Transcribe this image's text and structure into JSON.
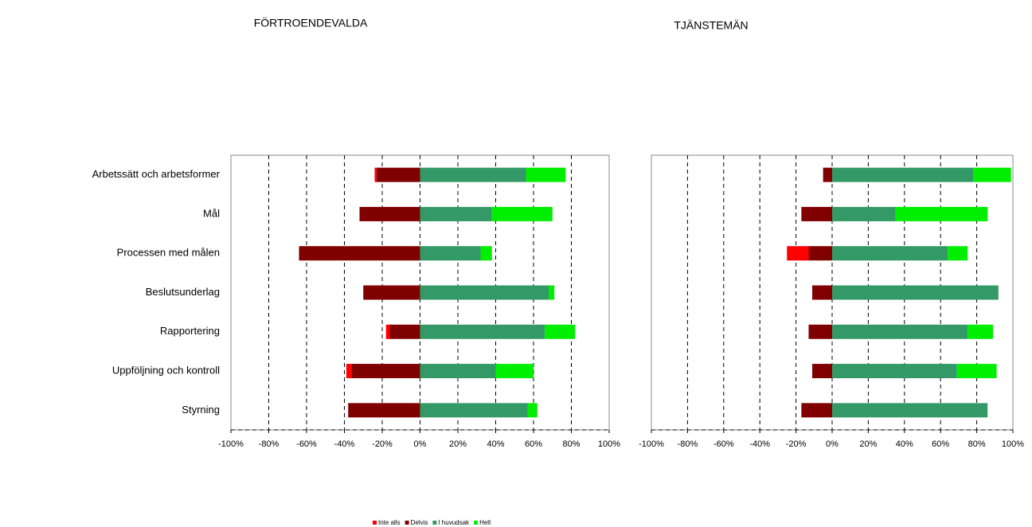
{
  "chart_data": [
    {
      "type": "bar",
      "orientation": "horizontal",
      "stacked": true,
      "title": "FÖRTROENDEVALDA",
      "categories": [
        "Arbetssätt och arbetsformer",
        "Mål",
        "Processen med målen",
        "Beslutsunderlag",
        "Rapportering",
        "Uppföljning och kontroll",
        "Styrning"
      ],
      "series": [
        {
          "name": "Inte alls",
          "color": "#ff0000",
          "values": [
            -1,
            0,
            0,
            0,
            -2,
            -3,
            0
          ]
        },
        {
          "name": "Delvis",
          "color": "#800000",
          "values": [
            -23,
            -32,
            -64,
            -30,
            -16,
            -36,
            -38
          ]
        },
        {
          "name": "I huvudsak",
          "color": "#339966",
          "values": [
            56,
            38,
            32,
            68,
            66,
            40,
            57
          ]
        },
        {
          "name": "Helt",
          "color": "#00ee00",
          "values": [
            21,
            32,
            6,
            3,
            16,
            20,
            5
          ]
        }
      ],
      "xlim": [
        -100,
        100
      ],
      "xticks": [
        {
          "value": -100,
          "label": "-100%"
        },
        {
          "value": -80,
          "label": "-80%"
        },
        {
          "value": -60,
          "label": "-60%"
        },
        {
          "value": -40,
          "label": "-40%"
        },
        {
          "value": -20,
          "label": "-20%"
        },
        {
          "value": 0,
          "label": "0%"
        },
        {
          "value": 20,
          "label": "20%"
        },
        {
          "value": 40,
          "label": "40%"
        },
        {
          "value": 60,
          "label": "60%"
        },
        {
          "value": 80,
          "label": "80%"
        },
        {
          "value": 100,
          "label": "100%"
        }
      ],
      "grid": true,
      "legend": "bottom"
    },
    {
      "type": "bar",
      "orientation": "horizontal",
      "stacked": true,
      "title": "TJÄNSTEMÄN",
      "series": [
        {
          "color": "#ff0000",
          "values": [
            0,
            0,
            -12,
            0,
            0,
            0,
            0
          ]
        },
        {
          "color": "#800000",
          "values": [
            -5,
            -17,
            -13,
            -11,
            -13,
            -11,
            -17
          ]
        },
        {
          "color": "#339966",
          "values": [
            78,
            35,
            64,
            92,
            75,
            69,
            86
          ]
        },
        {
          "color": "#00ee00",
          "values": [
            21,
            51,
            11,
            0,
            14,
            22,
            0
          ]
        }
      ],
      "xlim": [
        -100,
        100
      ],
      "xticks": [
        {
          "value": -100,
          "label": "-100%"
        },
        {
          "value": -80,
          "label": "-80%"
        },
        {
          "value": -60,
          "label": "-60%"
        },
        {
          "value": -40,
          "label": "-40%"
        },
        {
          "value": -20,
          "label": "-20%"
        },
        {
          "value": 0,
          "label": "0%"
        },
        {
          "value": 20,
          "label": "20%"
        },
        {
          "value": 40,
          "label": "40%"
        },
        {
          "value": 60,
          "label": "60%"
        },
        {
          "value": 80,
          "label": "80%"
        },
        {
          "value": 100,
          "label": "100%"
        }
      ],
      "grid": true
    }
  ]
}
